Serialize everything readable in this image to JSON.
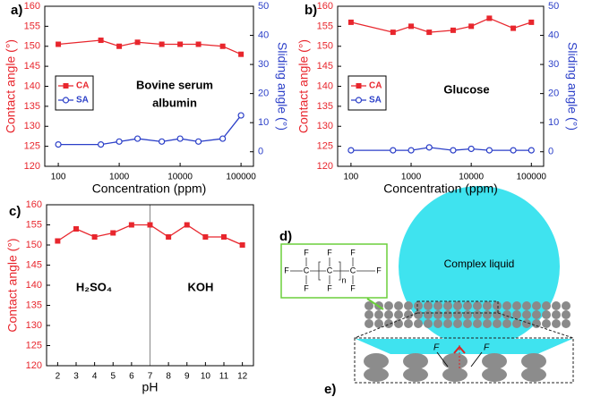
{
  "chart_data": [
    {
      "type": "line",
      "panel": "a)",
      "x_label": "Concentration (ppm)",
      "y_label": "Contact angle (°)",
      "y2_label": "Sliding angle (°)",
      "xscale": "log",
      "x": [
        100,
        500,
        1000,
        2000,
        5000,
        10000,
        20000,
        50000,
        100000
      ],
      "xlim": [
        60,
        160000
      ],
      "xticks": [
        100,
        1000,
        10000,
        100000
      ],
      "ylim": [
        120,
        160
      ],
      "yticks": [
        120,
        125,
        130,
        135,
        140,
        145,
        150,
        155,
        160
      ],
      "y2lim": [
        -5,
        50
      ],
      "y2ticks": [
        0,
        10,
        20,
        30,
        40,
        50
      ],
      "legend": "left",
      "annotation": [
        "Bovine serum",
        "albumin"
      ],
      "series": [
        {
          "name": "CA",
          "color": "#e8262d",
          "marker": "square",
          "values": [
            150.5,
            151.5,
            150,
            151,
            150.5,
            150.5,
            150.5,
            150,
            148
          ]
        },
        {
          "name": "SA",
          "color": "#2b3fc8",
          "marker": "circle",
          "axis": "y2",
          "values": [
            2.5,
            2.5,
            3.5,
            4.5,
            3.5,
            4.5,
            3.5,
            4.5,
            12.5
          ]
        }
      ]
    },
    {
      "type": "line",
      "panel": "b)",
      "x_label": "Concentration (ppm)",
      "y_label": "Contact angle (°)",
      "y2_label": "Sliding angle (°)",
      "xscale": "log",
      "x": [
        100,
        500,
        1000,
        2000,
        5000,
        10000,
        20000,
        50000,
        100000
      ],
      "xlim": [
        60,
        160000
      ],
      "xticks": [
        100,
        1000,
        10000,
        100000
      ],
      "ylim": [
        120,
        160
      ],
      "yticks": [
        120,
        125,
        130,
        135,
        140,
        145,
        150,
        155,
        160
      ],
      "y2lim": [
        -5,
        50
      ],
      "y2ticks": [
        0,
        10,
        20,
        30,
        40,
        50
      ],
      "legend": "left",
      "annotation": [
        "Glucose"
      ],
      "series": [
        {
          "name": "CA",
          "color": "#e8262d",
          "marker": "square",
          "values": [
            156,
            153.5,
            155,
            153.5,
            154,
            155,
            157,
            154.5,
            156
          ]
        },
        {
          "name": "SA",
          "color": "#2b3fc8",
          "marker": "circle",
          "axis": "y2",
          "values": [
            0.5,
            0.5,
            0.5,
            1.5,
            0.5,
            1,
            0.5,
            0.5,
            0.5
          ]
        }
      ]
    },
    {
      "type": "line",
      "panel": "c)",
      "x_label": "pH",
      "y_label": "Contact angle (°)",
      "x": [
        2,
        3,
        4,
        5,
        6,
        7,
        8,
        9,
        10,
        11,
        12
      ],
      "xlim": [
        1.4,
        12.6
      ],
      "xticks": [
        2,
        3,
        4,
        5,
        6,
        7,
        8,
        9,
        10,
        11,
        12
      ],
      "ylim": [
        120,
        160
      ],
      "yticks": [
        120,
        125,
        130,
        135,
        140,
        145,
        150,
        155,
        160
      ],
      "vline": 7,
      "annotation": [
        "H₂SO₄",
        "KOH"
      ],
      "series": [
        {
          "color": "#e8262d",
          "marker": "square",
          "values": [
            151,
            154,
            152,
            153,
            155,
            155,
            152,
            155,
            152,
            152,
            150
          ]
        }
      ]
    }
  ],
  "diagram": {
    "label_d": "d)",
    "label_e": "e)",
    "liquid": "Complex liquid",
    "formula": {
      "fluorine": "F",
      "carbon": "C",
      "repeat": "n"
    },
    "force": "F"
  }
}
